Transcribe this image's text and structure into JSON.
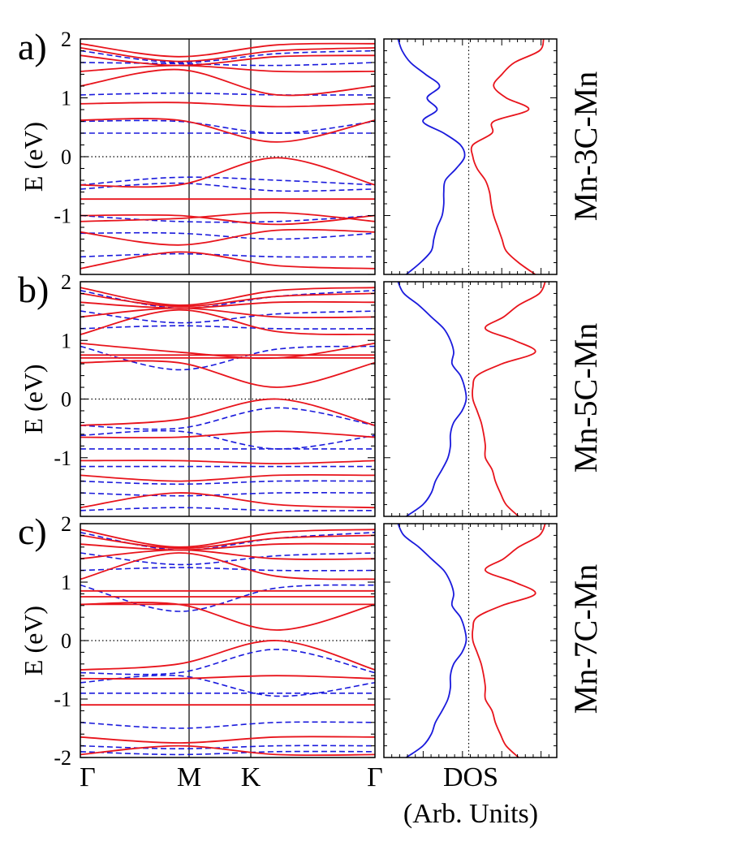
{
  "colors": {
    "spin_up": "#e8141c",
    "spin_down": "#1a1adc",
    "frame": "#000000",
    "fermi": "#000000"
  },
  "shared": {
    "ylabel": "E (eV)",
    "k_path": [
      "Γ",
      "M",
      "K",
      "Γ"
    ],
    "dos_xlabel": "DOS",
    "dos_units": "(Arb. Units)"
  },
  "chart_data": [
    {
      "type": "line",
      "panel": "a)",
      "system": "Mn-3C-Mn",
      "ylabel": "E (eV)",
      "ylim": [
        -2,
        2
      ],
      "yticks": [
        "2",
        "1",
        "0",
        "-1"
      ],
      "x_ticks": [
        "Γ",
        "M",
        "K",
        "Γ"
      ],
      "bands": {
        "spin_up": [
          [
            1.92,
            1.7,
            1.9,
            1.92
          ],
          [
            1.85,
            1.62,
            1.8,
            1.85
          ],
          [
            1.72,
            1.55,
            1.7,
            1.72
          ],
          [
            1.45,
            1.55,
            1.45,
            1.45
          ],
          [
            1.2,
            1.48,
            1.05,
            1.2
          ],
          [
            0.9,
            0.92,
            0.85,
            0.9
          ],
          [
            0.62,
            0.62,
            0.25,
            0.62
          ],
          [
            -0.48,
            -0.48,
            -0.02,
            -0.48
          ],
          [
            -0.72,
            -0.72,
            -0.72,
            -0.72
          ],
          [
            -1.0,
            -1.0,
            -1.15,
            -1.0
          ],
          [
            -1.1,
            -1.05,
            -0.95,
            -1.1
          ],
          [
            -1.28,
            -1.5,
            -1.25,
            -1.28
          ],
          [
            -1.9,
            -1.62,
            -1.85,
            -1.9
          ]
        ],
        "spin_down": [
          [
            1.8,
            1.6,
            1.75,
            1.8
          ],
          [
            1.6,
            1.58,
            1.55,
            1.6
          ],
          [
            1.05,
            1.08,
            1.05,
            1.05
          ],
          [
            0.6,
            0.6,
            0.4,
            0.6
          ],
          [
            0.4,
            0.4,
            0.4,
            0.4
          ],
          [
            -0.48,
            -0.35,
            -0.4,
            -0.48
          ],
          [
            -0.55,
            -0.45,
            -0.58,
            -0.55
          ],
          [
            -1.0,
            -1.1,
            -1.1,
            -1.0
          ],
          [
            -1.3,
            -1.3,
            -1.4,
            -1.3
          ],
          [
            -1.7,
            -1.65,
            -1.7,
            -1.7
          ]
        ]
      },
      "dos": {
        "xlabel": "DOS",
        "energies": [
          2.0,
          1.8,
          1.6,
          1.4,
          1.2,
          1.0,
          0.8,
          0.6,
          0.4,
          0.2,
          0.0,
          -0.2,
          -0.4,
          -0.6,
          -0.8,
          -1.0,
          -1.2,
          -1.4,
          -1.6,
          -1.8,
          -2.0
        ],
        "spin_down": [
          0.85,
          0.8,
          0.7,
          0.52,
          0.35,
          0.5,
          0.38,
          0.55,
          0.3,
          0.1,
          0.05,
          0.15,
          0.28,
          0.3,
          0.3,
          0.32,
          0.38,
          0.42,
          0.45,
          0.58,
          0.75
        ],
        "spin_up": [
          0.9,
          0.85,
          0.55,
          0.4,
          0.3,
          0.45,
          0.72,
          0.3,
          0.28,
          0.05,
          0.05,
          0.1,
          0.2,
          0.25,
          0.27,
          0.3,
          0.35,
          0.4,
          0.45,
          0.6,
          0.8
        ]
      }
    },
    {
      "type": "line",
      "panel": "b)",
      "system": "Mn-5C-Mn",
      "ylabel": "E (eV)",
      "ylim": [
        -2,
        2
      ],
      "yticks": [
        "2",
        "1",
        "0",
        "-1"
      ],
      "x_ticks": [
        "Γ",
        "M",
        "K",
        "Γ"
      ],
      "bands": {
        "spin_up": [
          [
            1.9,
            1.6,
            1.85,
            1.9
          ],
          [
            1.8,
            1.58,
            1.75,
            1.8
          ],
          [
            1.65,
            1.55,
            1.65,
            1.65
          ],
          [
            1.4,
            1.55,
            1.4,
            1.4
          ],
          [
            1.1,
            1.52,
            1.15,
            1.1
          ],
          [
            0.95,
            0.8,
            0.7,
            0.95
          ],
          [
            0.75,
            0.75,
            0.75,
            0.75
          ],
          [
            0.7,
            0.7,
            0.7,
            0.7
          ],
          [
            0.62,
            0.62,
            0.2,
            0.62
          ],
          [
            -0.45,
            -0.35,
            0.0,
            -0.45
          ],
          [
            -0.65,
            -0.65,
            -0.55,
            -0.65
          ],
          [
            -1.05,
            -1.05,
            -1.1,
            -1.05
          ],
          [
            -1.3,
            -1.4,
            -1.3,
            -1.3
          ],
          [
            -1.85,
            -1.6,
            -1.8,
            -1.85
          ]
        ],
        "spin_down": [
          [
            1.85,
            1.55,
            1.75,
            1.85
          ],
          [
            1.5,
            1.3,
            1.45,
            1.5
          ],
          [
            1.2,
            1.25,
            1.2,
            1.2
          ],
          [
            0.9,
            0.5,
            0.85,
            0.9
          ],
          [
            -0.45,
            -0.5,
            -0.15,
            -0.45
          ],
          [
            -0.62,
            -0.55,
            -0.85,
            -0.62
          ],
          [
            -0.85,
            -0.85,
            -0.85,
            -0.85
          ],
          [
            -1.15,
            -1.15,
            -1.15,
            -1.15
          ],
          [
            -1.4,
            -1.45,
            -1.4,
            -1.4
          ],
          [
            -1.6,
            -1.65,
            -1.6,
            -1.6
          ],
          [
            -1.9,
            -1.85,
            -1.9,
            -1.9
          ]
        ]
      },
      "dos": {
        "xlabel": "DOS",
        "energies": [
          2.0,
          1.8,
          1.6,
          1.4,
          1.2,
          1.0,
          0.8,
          0.6,
          0.4,
          0.2,
          0.0,
          -0.2,
          -0.4,
          -0.6,
          -0.8,
          -1.0,
          -1.2,
          -1.4,
          -1.6,
          -1.8,
          -2.0
        ],
        "spin_down": [
          0.85,
          0.78,
          0.6,
          0.45,
          0.3,
          0.22,
          0.18,
          0.2,
          0.1,
          0.05,
          0.03,
          0.08,
          0.18,
          0.22,
          0.22,
          0.25,
          0.32,
          0.4,
          0.45,
          0.55,
          0.75
        ],
        "spin_up": [
          0.92,
          0.85,
          0.6,
          0.42,
          0.2,
          0.55,
          0.8,
          0.4,
          0.1,
          0.05,
          0.05,
          0.1,
          0.15,
          0.18,
          0.2,
          0.2,
          0.28,
          0.32,
          0.38,
          0.45,
          0.6
        ]
      }
    },
    {
      "type": "line",
      "panel": "c)",
      "system": "Mn-7C-Mn",
      "ylabel": "E (eV)",
      "ylim": [
        -2,
        2
      ],
      "yticks": [
        "2",
        "1",
        "0",
        "-1",
        "-2"
      ],
      "x_ticks": [
        "Γ",
        "M",
        "K",
        "Γ"
      ],
      "bands": {
        "spin_up": [
          [
            1.9,
            1.6,
            1.85,
            1.9
          ],
          [
            1.8,
            1.58,
            1.75,
            1.8
          ],
          [
            1.65,
            1.55,
            1.65,
            1.65
          ],
          [
            1.4,
            1.55,
            1.4,
            1.4
          ],
          [
            1.05,
            1.5,
            1.1,
            1.05
          ],
          [
            0.85,
            0.85,
            0.85,
            0.85
          ],
          [
            0.75,
            0.75,
            0.75,
            0.75
          ],
          [
            0.62,
            0.62,
            0.62,
            0.62
          ],
          [
            0.62,
            0.62,
            0.18,
            0.62
          ],
          [
            -0.5,
            -0.4,
            0.0,
            -0.5
          ],
          [
            -0.65,
            -0.65,
            -0.6,
            -0.65
          ],
          [
            -1.1,
            -1.1,
            -1.1,
            -1.1
          ],
          [
            -1.65,
            -1.75,
            -1.65,
            -1.65
          ],
          [
            -1.95,
            -1.8,
            -1.95,
            -1.95
          ]
        ],
        "spin_down": [
          [
            1.85,
            1.55,
            1.75,
            1.85
          ],
          [
            1.5,
            1.3,
            1.45,
            1.5
          ],
          [
            1.2,
            1.25,
            1.2,
            1.2
          ],
          [
            0.95,
            0.5,
            0.9,
            0.95
          ],
          [
            -0.55,
            -0.55,
            -0.15,
            -0.55
          ],
          [
            -0.72,
            -0.6,
            -0.95,
            -0.72
          ],
          [
            -0.9,
            -0.9,
            -0.9,
            -0.9
          ],
          [
            -1.4,
            -1.5,
            -1.4,
            -1.4
          ],
          [
            -1.8,
            -1.85,
            -1.8,
            -1.8
          ],
          [
            -1.9,
            -1.95,
            -1.9,
            -1.9
          ]
        ]
      },
      "dos": {
        "xlabel": "DOS",
        "energies": [
          2.0,
          1.8,
          1.6,
          1.4,
          1.2,
          1.0,
          0.8,
          0.6,
          0.4,
          0.2,
          0.0,
          -0.2,
          -0.4,
          -0.6,
          -0.8,
          -1.0,
          -1.2,
          -1.4,
          -1.6,
          -1.8,
          -2.0
        ],
        "spin_down": [
          0.85,
          0.78,
          0.6,
          0.45,
          0.3,
          0.22,
          0.18,
          0.2,
          0.1,
          0.05,
          0.03,
          0.08,
          0.18,
          0.22,
          0.22,
          0.25,
          0.32,
          0.4,
          0.45,
          0.55,
          0.75
        ],
        "spin_up": [
          0.92,
          0.85,
          0.6,
          0.42,
          0.2,
          0.55,
          0.8,
          0.4,
          0.1,
          0.05,
          0.05,
          0.1,
          0.15,
          0.18,
          0.2,
          0.2,
          0.28,
          0.32,
          0.38,
          0.45,
          0.6
        ]
      }
    }
  ]
}
